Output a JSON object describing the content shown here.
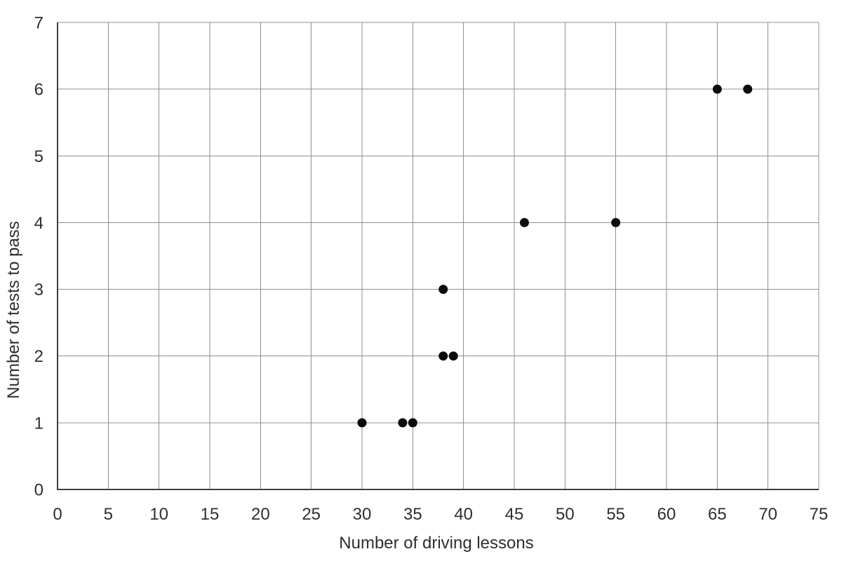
{
  "chart_data": {
    "type": "scatter",
    "title": "",
    "xlabel": "Number of driving lessons",
    "ylabel": "Number of tests to pass",
    "xlim": [
      0,
      75
    ],
    "ylim": [
      0,
      7
    ],
    "xticks": [
      0,
      5,
      10,
      15,
      20,
      25,
      30,
      35,
      40,
      45,
      50,
      55,
      60,
      65,
      70,
      75
    ],
    "yticks": [
      0,
      1,
      2,
      3,
      4,
      5,
      6,
      7
    ],
    "grid": true,
    "legend": false,
    "points": [
      [
        30,
        1
      ],
      [
        34,
        1
      ],
      [
        35,
        1
      ],
      [
        38,
        2
      ],
      [
        39,
        2
      ],
      [
        38,
        3
      ],
      [
        46,
        4
      ],
      [
        55,
        4
      ],
      [
        65,
        6
      ],
      [
        68,
        6
      ]
    ],
    "colors": {
      "point": "#0b0b0b",
      "grid": "#8f8f8f",
      "axis": "#3f3f3f",
      "text": "#2e2e2e",
      "background": "#ffffff"
    }
  }
}
